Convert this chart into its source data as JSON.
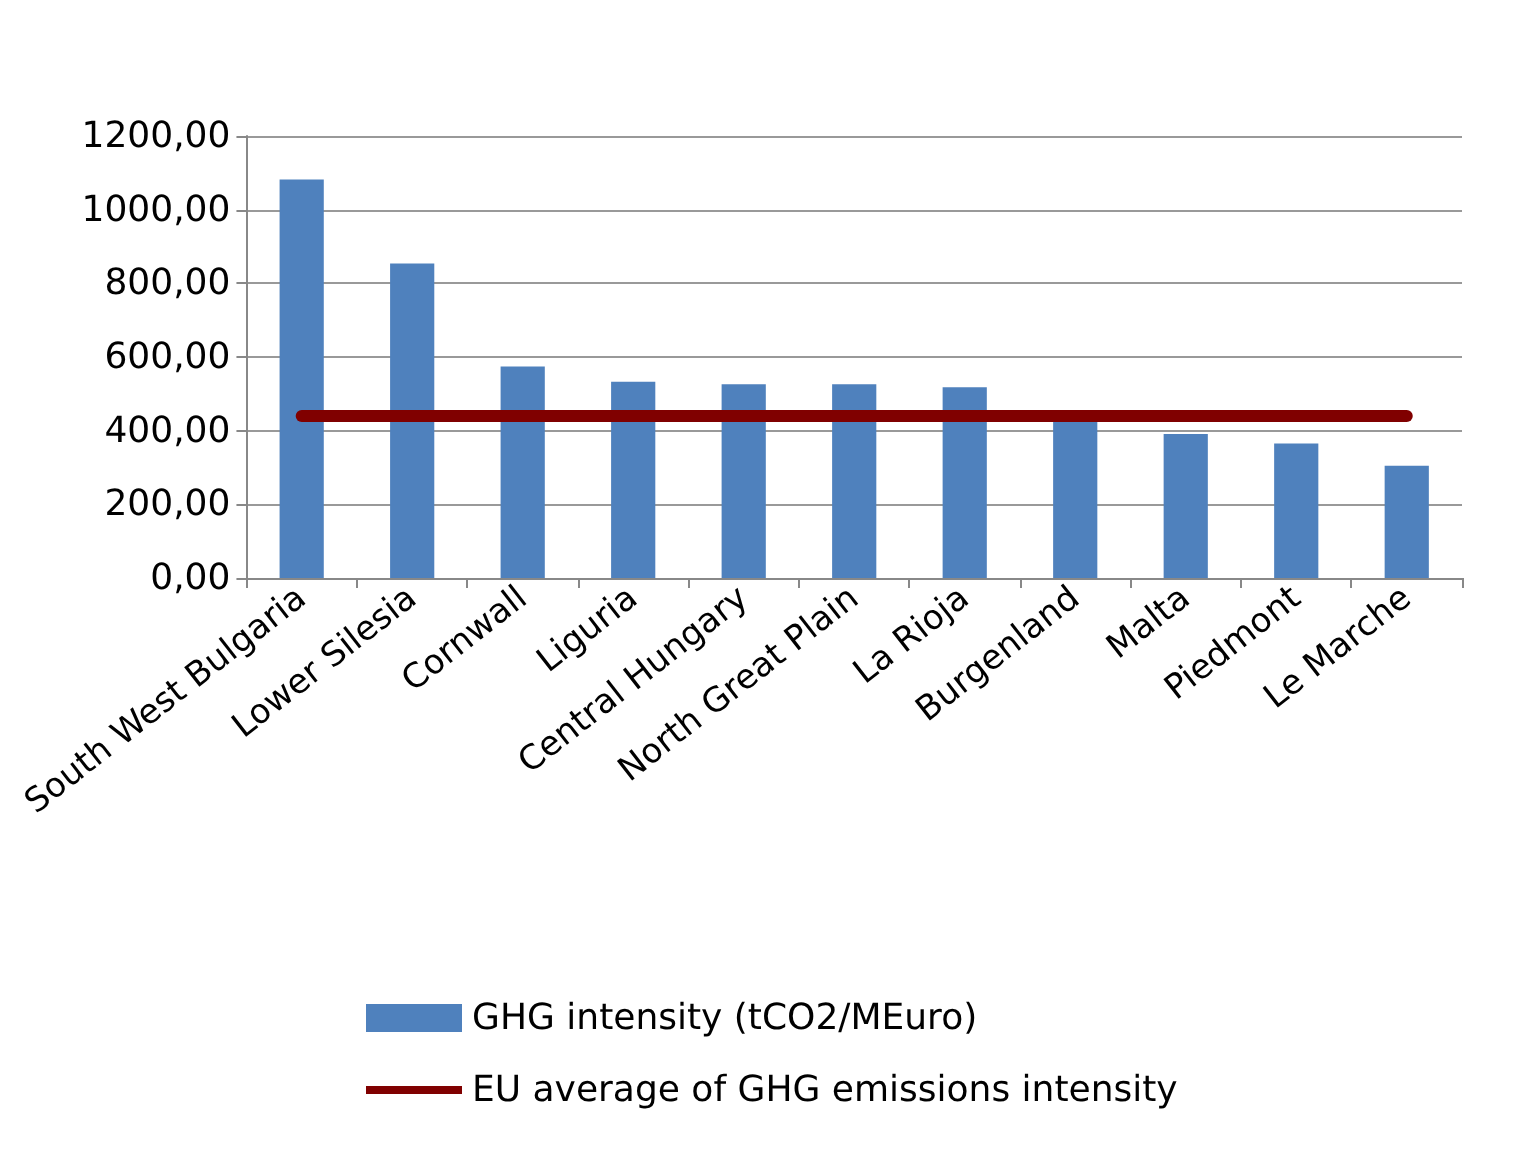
{
  "chart_data": {
    "type": "bar",
    "categories": [
      "South West Bulgaria",
      "Lower Silesia",
      "Cornwall",
      "Liguria",
      "Central Hungary",
      "North Great Plain",
      "La Rioja",
      "Burgenland",
      "Malta",
      "Piedmont",
      "Le Marche"
    ],
    "series": [
      {
        "name": "GHG intensity (tCO2/MEuro)",
        "color": "#4f81bd",
        "values": [
          1082,
          854,
          574,
          533,
          526,
          526,
          518,
          435,
          391,
          365,
          305
        ]
      },
      {
        "name": "EU average of GHG emissions intensity",
        "type": "line",
        "color": "#800000",
        "marker": "none",
        "values": [
          440,
          440,
          440,
          440,
          440,
          440,
          440,
          440,
          440,
          440,
          440
        ]
      }
    ],
    "ylim": [
      0,
      1200
    ],
    "yticks": [
      {
        "value": 0,
        "label": "0,00"
      },
      {
        "value": 200,
        "label": "200,00"
      },
      {
        "value": 400,
        "label": "400,00"
      },
      {
        "value": 600,
        "label": "600,00"
      },
      {
        "value": 800,
        "label": "800,00"
      },
      {
        "value": 1000,
        "label": "1000,00"
      },
      {
        "value": 1200,
        "label": "1200,00"
      }
    ],
    "grid": "y",
    "legend": "bottom"
  }
}
